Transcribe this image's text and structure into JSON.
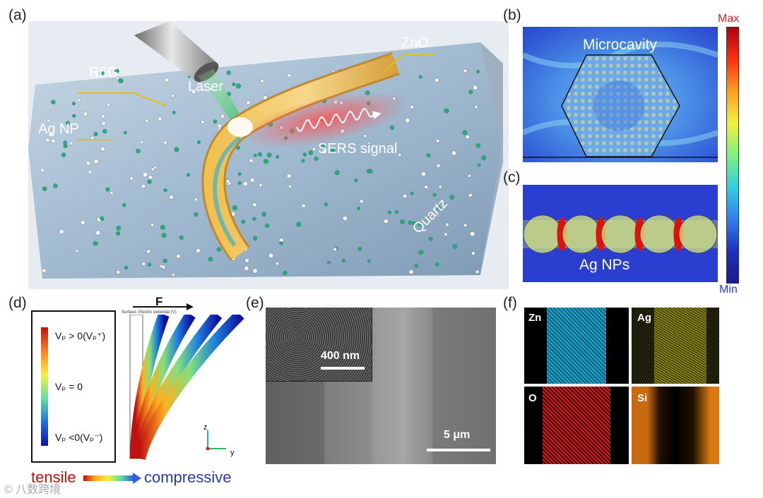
{
  "panels": {
    "a": {
      "label": "(a)",
      "laser": "Laser",
      "zno": "ZnO",
      "r6g": "R6G",
      "ag_np": "Ag NP",
      "sers": "SERS signal",
      "quartz": "Quartz"
    },
    "b": {
      "label": "(b)",
      "microcavity": "Microcavity"
    },
    "c": {
      "label": "(c)",
      "ag_nps": "Ag NPs"
    },
    "colorbar": {
      "max": "Max",
      "min": "Min"
    },
    "d": {
      "label": "(d)",
      "force": "F",
      "surface_note": "Surface: Electric potential (V)",
      "legend_pos": "Vₚ > 0(Vₚ⁺)",
      "legend_zero": "Vₚ = 0",
      "legend_neg": "Vₚ <0(Vₚ⁻)",
      "tensile": "tensile",
      "compressive": "compressive",
      "axis_z": "z",
      "axis_y": "y"
    },
    "e": {
      "label": "(e)",
      "scale_inset": "400 nm",
      "scale_main": "5 μm"
    },
    "f": {
      "label": "(f)",
      "zn": "Zn",
      "ag": "Ag",
      "o": "O",
      "si": "Si"
    }
  },
  "watermark": "© 八数跨境",
  "colors": {
    "max_red": "#e02020",
    "min_blue": "#2a3ad0",
    "zn_cyan": "#1fa5c8",
    "ag_yellow": "#c8c020",
    "o_red": "#d02020",
    "si_orange": "#d87a10"
  }
}
